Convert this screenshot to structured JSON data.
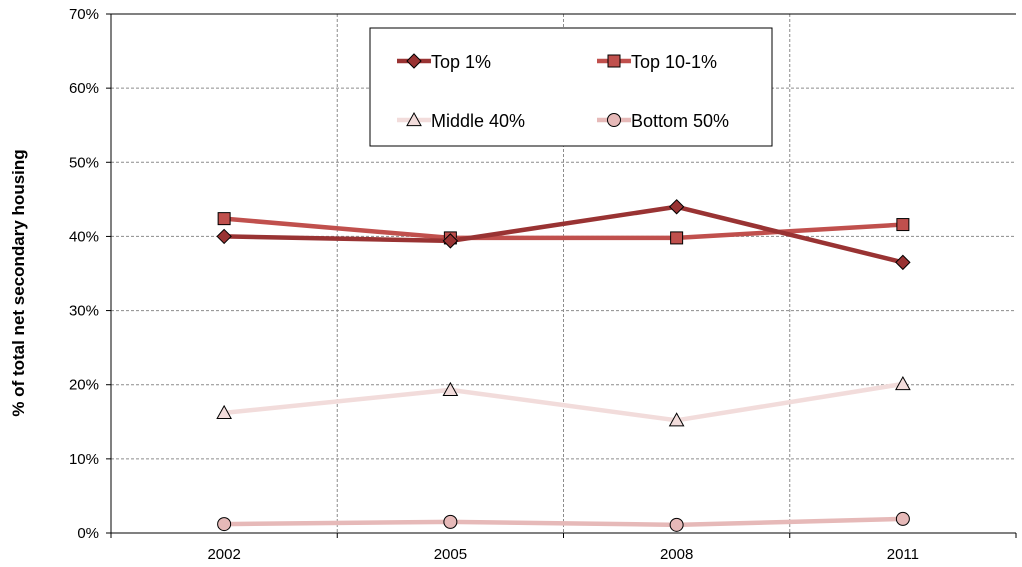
{
  "chart_data": {
    "type": "line",
    "title": "",
    "xlabel": "",
    "ylabel": "% of total net secondary housing",
    "categories": [
      "2002",
      "2005",
      "2008",
      "2011"
    ],
    "yticks": [
      "0%",
      "10%",
      "20%",
      "30%",
      "40%",
      "50%",
      "60%",
      "70%"
    ],
    "ylim": [
      0,
      70
    ],
    "grid": true,
    "legend_position": "top-center",
    "series": [
      {
        "name": "Top 1%",
        "values": [
          40.0,
          39.4,
          44.0,
          36.5
        ],
        "color": "#993333",
        "marker": "diamond"
      },
      {
        "name": "Top 10-1%",
        "values": [
          42.4,
          39.8,
          39.8,
          41.6
        ],
        "color": "#c0504d",
        "marker": "square"
      },
      {
        "name": "Middle 40%",
        "values": [
          16.2,
          19.3,
          15.2,
          20.1
        ],
        "color": "#f2dcdb",
        "marker": "triangle"
      },
      {
        "name": "Bottom 50%",
        "values": [
          1.2,
          1.5,
          1.1,
          1.9
        ],
        "color": "#e6b9b8",
        "marker": "circle"
      }
    ]
  }
}
